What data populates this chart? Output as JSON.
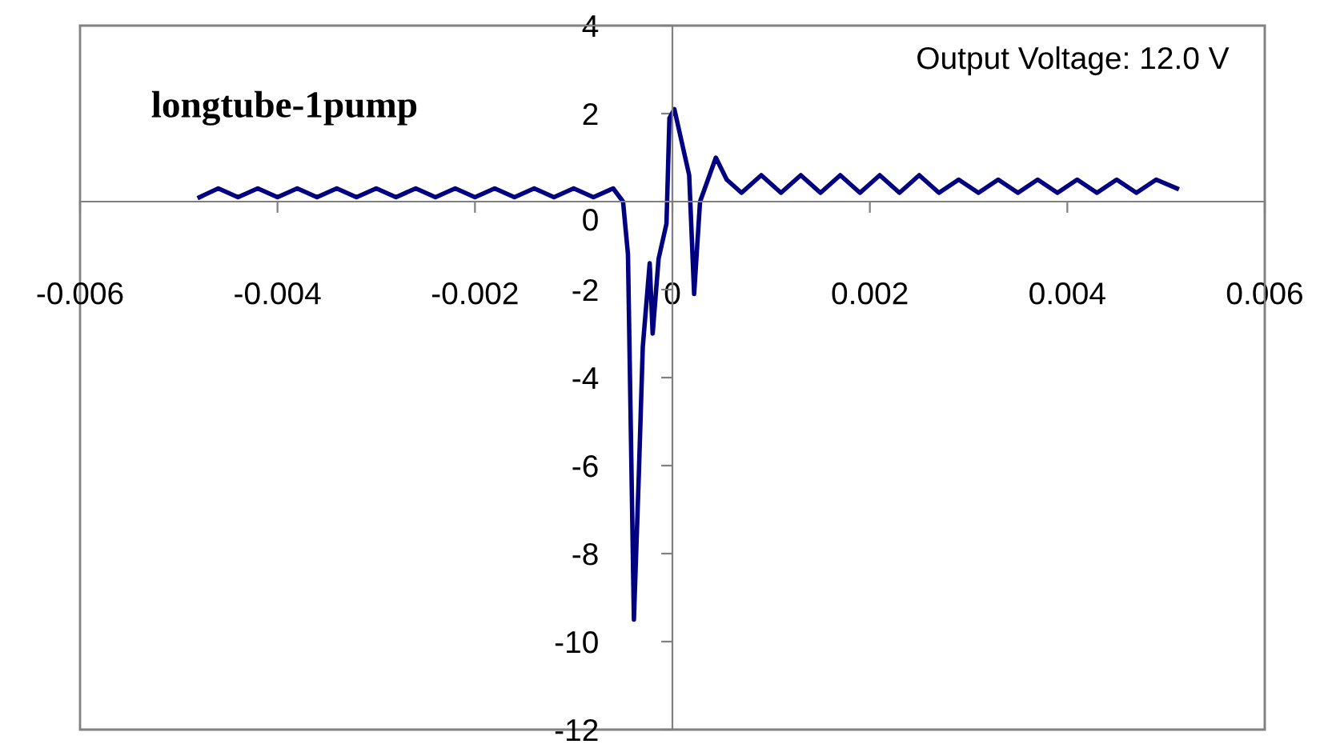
{
  "chart_data": {
    "type": "line",
    "title": "longtube-1pump",
    "annotations": [
      "Output Voltage: 12.0 V"
    ],
    "xlim": [
      -0.006,
      0.006
    ],
    "ylim": [
      -12,
      4
    ],
    "xticks": [
      -0.006,
      -0.004,
      -0.002,
      0,
      0.002,
      0.004,
      0.006
    ],
    "yticks": [
      -12,
      -10,
      -8,
      -6,
      -4,
      -2,
      0,
      2,
      4
    ],
    "grid": false,
    "marker": "none",
    "line_style": "solid",
    "series": [
      {
        "color": "#000080",
        "x": [
          -0.00479,
          -0.0046,
          -0.0044,
          -0.0042,
          -0.004,
          -0.0038,
          -0.0036,
          -0.0034,
          -0.0032,
          -0.003,
          -0.0028,
          -0.0026,
          -0.0024,
          -0.0022,
          -0.002,
          -0.0018,
          -0.0016,
          -0.0014,
          -0.0012,
          -0.001,
          -0.0008,
          -0.0006,
          -0.0005,
          -0.00045,
          -0.00039,
          -0.00034,
          -0.0003,
          -0.00023,
          -0.0002,
          -0.00014,
          -6e-05,
          -3e-05,
          2e-05,
          9e-05,
          0.00017,
          0.00022,
          0.00028,
          0.00044,
          0.00055,
          0.0007,
          0.0009,
          0.0011,
          0.0013,
          0.0015,
          0.0017,
          0.0019,
          0.0021,
          0.0023,
          0.0025,
          0.0027,
          0.0029,
          0.0031,
          0.0033,
          0.0035,
          0.0037,
          0.0039,
          0.0041,
          0.0043,
          0.0045,
          0.0047,
          0.0049,
          0.00511
        ],
        "values": [
          0.1,
          0.3,
          0.1,
          0.3,
          0.1,
          0.3,
          0.1,
          0.3,
          0.1,
          0.3,
          0.1,
          0.3,
          0.1,
          0.3,
          0.1,
          0.3,
          0.1,
          0.3,
          0.1,
          0.3,
          0.1,
          0.3,
          0,
          -1.2,
          -9.5,
          -6.2,
          -3.3,
          -1.4,
          -3,
          -1.3,
          -0.5,
          1.9,
          2.1,
          1.4,
          0.6,
          -2.1,
          0,
          1,
          0.5,
          0.2,
          0.6,
          0.2,
          0.6,
          0.2,
          0.6,
          0.2,
          0.6,
          0.2,
          0.6,
          0.2,
          0.5,
          0.2,
          0.5,
          0.2,
          0.5,
          0.2,
          0.5,
          0.2,
          0.5,
          0.2,
          0.5,
          0.3
        ]
      }
    ]
  }
}
